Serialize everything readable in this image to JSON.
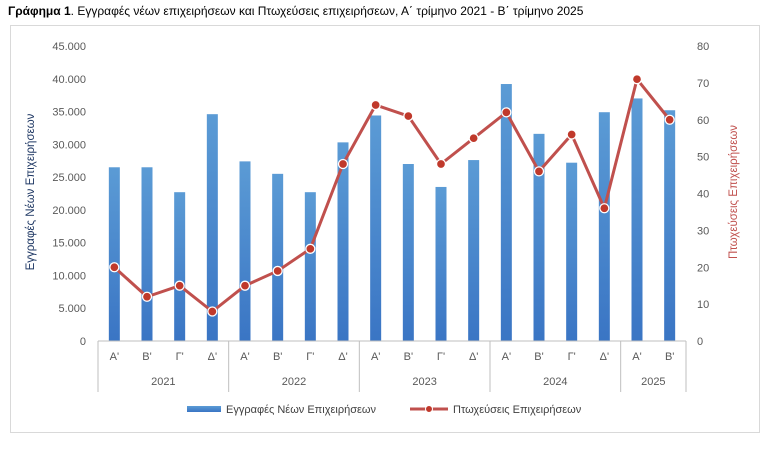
{
  "title_prefix": "Γράφημα 1",
  "title_rest": ". Εγγραφές νέων επιχειρήσεων και Πτωχεύσεις επιχειρήσεων, Α΄ τρίμηνο 2021 - Β΄ τρίμηνο 2025",
  "colors": {
    "bars": "#3a75c4",
    "bars_light": "#5b9bd5",
    "line": "#c0504d",
    "marker": "#c0392b",
    "left_axis_title": "#1f3864",
    "right_axis_title": "#c0504d"
  },
  "chart_data": {
    "type": "bar+line",
    "categories": [
      "Α'",
      "Β'",
      "Γ'",
      "Δ'",
      "Α'",
      "Β'",
      "Γ'",
      "Δ'",
      "Α'",
      "Β'",
      "Γ'",
      "Δ'",
      "Α'",
      "Β'",
      "Γ'",
      "Δ'",
      "Α'",
      "Β'"
    ],
    "years": [
      {
        "label": "2021",
        "count": 4
      },
      {
        "label": "2022",
        "count": 4
      },
      {
        "label": "2023",
        "count": 4
      },
      {
        "label": "2024",
        "count": 4
      },
      {
        "label": "2025",
        "count": 2
      }
    ],
    "series": [
      {
        "name": "Εγγραφές Νέων Επιχειρήσεων",
        "type": "bar",
        "axis": "left",
        "values": [
          26500,
          26500,
          22700,
          34600,
          27400,
          25500,
          22700,
          30300,
          34400,
          27000,
          23500,
          27600,
          39200,
          31600,
          27200,
          34900,
          37000,
          35200
        ]
      },
      {
        "name": "Πτωχεύσεις Επιχειρήσεων",
        "type": "line",
        "axis": "right",
        "values": [
          20,
          12,
          15,
          8,
          15,
          19,
          25,
          48,
          64,
          61,
          48,
          55,
          62,
          46,
          56,
          36,
          71,
          60
        ]
      }
    ],
    "left_axis": {
      "label": "Εγγραφές Νέων Επιχειρήσεων",
      "min": 0,
      "max": 45000,
      "ticks": [
        "0",
        "5.000",
        "10.000",
        "15.000",
        "20.000",
        "25.000",
        "30.000",
        "35.000",
        "40.000",
        "45.000"
      ]
    },
    "right_axis": {
      "label": "Πτωχεύσεις Επιχειρήσεων",
      "min": 0,
      "max": 80,
      "ticks": [
        "0",
        "10",
        "20",
        "30",
        "40",
        "50",
        "60",
        "70",
        "80"
      ]
    },
    "grid": false,
    "legend_position": "bottom"
  }
}
